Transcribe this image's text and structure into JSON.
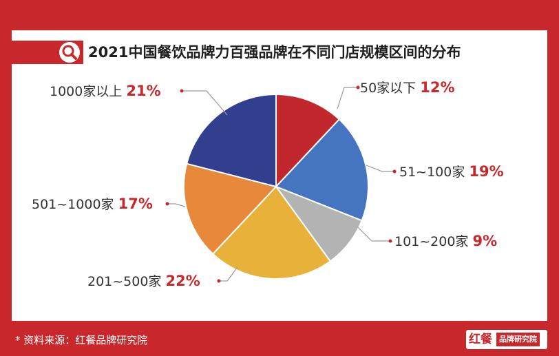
{
  "title": "2021中国餐饮品牌力百强品牌在不同门店规模区间的分布",
  "footer": {
    "source": "* 资料来源：红餐品牌研究院"
  },
  "logo": {
    "brand": "红餐",
    "sub": "品牌研究院"
  },
  "chart_data": {
    "type": "pie",
    "title": "2021中国餐饮品牌力百强品牌在不同门店规模区间的分布",
    "unit": "%",
    "slices": [
      {
        "label": "50家以下",
        "value": 12,
        "pct_text": "12%",
        "color": "#c1282d"
      },
      {
        "label": "51~100家",
        "value": 19,
        "pct_text": "19%",
        "color": "#4574c0"
      },
      {
        "label": "101~200家",
        "value": 9,
        "pct_text": "9%",
        "color": "#b3b3b3"
      },
      {
        "label": "201~500家",
        "value": 22,
        "pct_text": "22%",
        "color": "#e8b23a"
      },
      {
        "label": "501~1000家",
        "value": 17,
        "pct_text": "17%",
        "color": "#e8883a"
      },
      {
        "label": "1000家以上",
        "value": 21,
        "pct_text": "21%",
        "color": "#323f8e"
      }
    ],
    "start": "12 o'clock",
    "direction": "clockwise",
    "legend": "none",
    "data_labels": "outside"
  },
  "colors": {
    "accent": "#c8282b",
    "leader": "#9a9a9a"
  },
  "icons": {
    "title": "search-icon"
  }
}
